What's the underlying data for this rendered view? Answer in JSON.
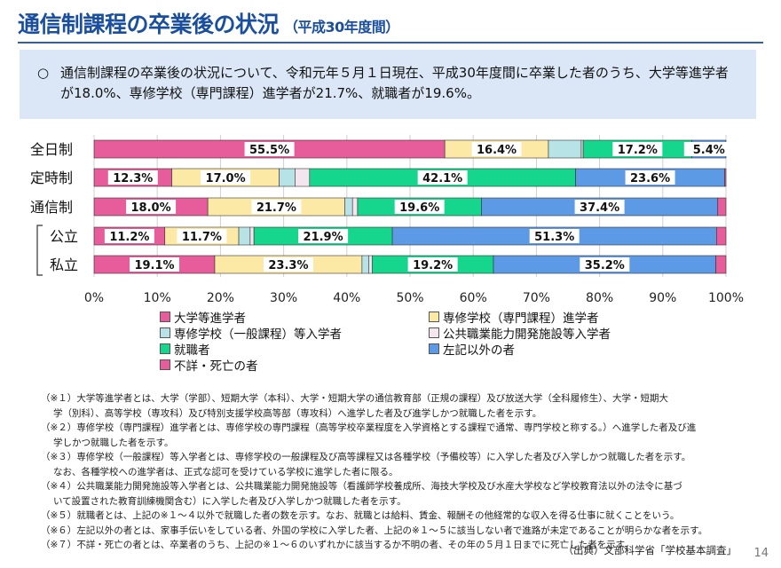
{
  "header": {
    "title": "通信制課程の卒業後の状況",
    "subtitle": "（平成30年度間）"
  },
  "summary": {
    "bullet": "○",
    "line1": "通信制課程の卒業後の状況について、令和元年５月１日現在、平成30年度間に卒業した者のうち、大学等進学者",
    "line2": "が18.0%、専修学校（専門課程）進学者が21.7%、就職者が19.6%。"
  },
  "chart_data": {
    "type": "bar",
    "orientation": "horizontal",
    "stacked": true,
    "categories": [
      "全日制",
      "定時制",
      "通信制",
      "公立",
      "私立"
    ],
    "group_bracket": "通信制",
    "xlim": [
      0,
      100
    ],
    "xticks": [
      "0%",
      "10%",
      "20%",
      "30%",
      "40%",
      "50%",
      "60%",
      "70%",
      "80%",
      "90%",
      "100%"
    ],
    "grid": true,
    "series": [
      {
        "name": "大学等進学者",
        "color": "#e75c9a",
        "values": [
          55.5,
          12.3,
          18.0,
          11.2,
          19.1
        ],
        "labels": [
          "55.5%",
          "12.3%",
          "18.0%",
          "11.2%",
          "19.1%"
        ]
      },
      {
        "name": "専修学校（専門課程）進学者",
        "color": "#fde9a6",
        "values": [
          16.4,
          17.0,
          21.7,
          11.7,
          23.3
        ],
        "labels": [
          "16.4%",
          "17.0%",
          "21.7%",
          "11.7%",
          "23.3%"
        ]
      },
      {
        "name": "専修学校（一般課程）等入学者",
        "color": "#b7e3e6",
        "values": [
          5.2,
          2.5,
          1.2,
          1.8,
          1.1
        ],
        "labels": [
          "",
          "",
          "",
          "",
          ""
        ]
      },
      {
        "name": "公共職業能力開発施設等入学者",
        "color": "#f4e6ee",
        "values": [
          0.3,
          2.3,
          0.8,
          0.6,
          0.5
        ],
        "labels": [
          "",
          "",
          "",
          "",
          ""
        ]
      },
      {
        "name": "就職者",
        "color": "#16d68e",
        "values": [
          17.2,
          42.1,
          19.6,
          21.9,
          19.2
        ],
        "labels": [
          "17.2%",
          "42.1%",
          "19.6%",
          "21.9%",
          "19.2%"
        ]
      },
      {
        "name": "左記以外の者",
        "color": "#5d9ae5",
        "values": [
          5.4,
          23.6,
          37.4,
          51.3,
          35.2
        ],
        "labels": [
          "5.4%",
          "23.6%",
          "37.4%",
          "51.3%",
          "35.2%"
        ]
      },
      {
        "name": "不詳・死亡の者",
        "color": "#e75c9a",
        "values": [
          0.0,
          0.2,
          1.3,
          1.5,
          1.6
        ],
        "labels": [
          "",
          "",
          "",
          "",
          ""
        ]
      }
    ]
  },
  "notes": [
    {
      "mark": "（※１）",
      "text": "大学等進学者とは、大学（学部）、短期大学（本科）、大学・短期大学の通信教育部（正規の課程）及び放送大学（全科履修生）、大学・短期大",
      "cont": "学（別科）、高等学校（専攻科）及び特別支援学校高等部（専攻科）へ進学した者及び進学しかつ就職した者を示す。"
    },
    {
      "mark": "（※２）",
      "text": "専修学校（専門課程）進学者とは、専修学校の専門課程（高等学校卒業程度を入学資格とする課程で通常、専門学校と称する。）へ進学した者及び進",
      "cont": "学しかつ就職した者を示す。"
    },
    {
      "mark": "（※３）",
      "text": "専修学校（一般課程）等入学者とは、専修学校の一般課程及び高等課程又は各種学校（予備校等）に入学した者及び入学しかつ就職した者を示す。",
      "cont": "なお、各種学校への進学者は、正式な認可を受けている学校に進学した者に限る。"
    },
    {
      "mark": "（※４）",
      "text": "公共職業能力開発施設等入学者とは、公共職業能力開発施設等（看護師学校養成所、海技大学校及び水産大学校など学校教育法以外の法令に基づ",
      "cont": "いて設置された教育訓練機関含む）に入学した者及び入学しかつ就職した者を示す。"
    },
    {
      "mark": "（※５）",
      "text": "就職者とは、上記の※１～４以外で就職した者の数を示す。なお、就職とは給料、賃金、報酬その他経常的な収入を得る仕事に就くことをいう。",
      "cont": ""
    },
    {
      "mark": "（※６）",
      "text": "左記以外の者とは、家事手伝いをしている者、外国の学校に入学した者、上記の※１～５に該当しない者で進路が未定であることが明らかな者を示す。",
      "cont": ""
    },
    {
      "mark": "（※７）",
      "text": "不詳・死亡の者とは、卒業者のうち、上記の※１～６のいずれかに該当するか不明の者、その年の５月１日までに死亡した者を示す。",
      "cont": ""
    }
  ],
  "source": "（出典）文部科学省「学校基本調査」",
  "page_number": "14"
}
